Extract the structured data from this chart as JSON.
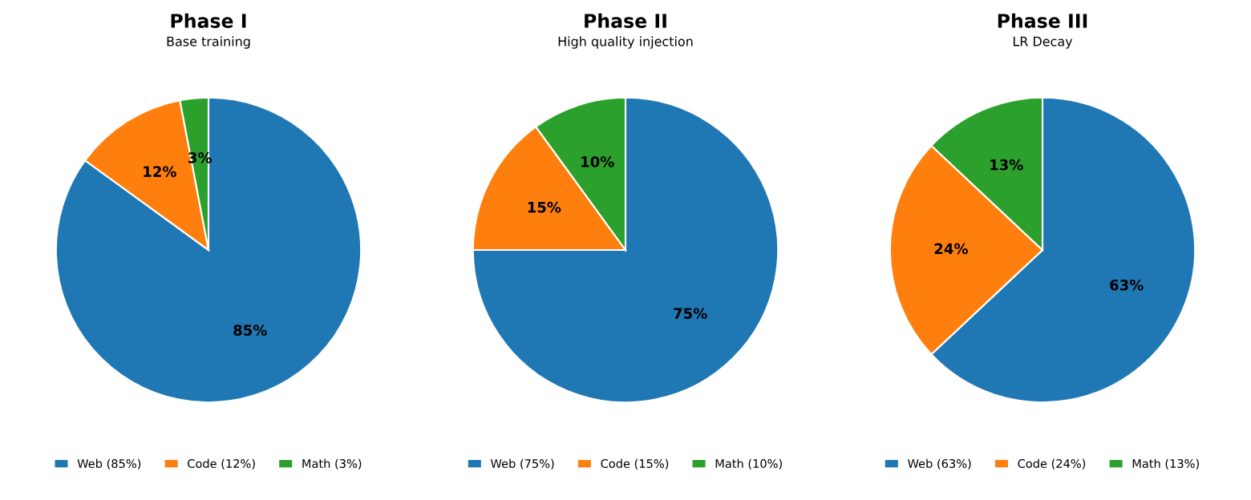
{
  "chart_data": [
    {
      "type": "pie",
      "title": "Phase I",
      "subtitle": "Base training",
      "categories": [
        "Web (85%)",
        "Code (12%)",
        "Math (3%)"
      ],
      "values": [
        85,
        12,
        3
      ],
      "colors": [
        "#1f77b4",
        "#ff7f0e",
        "#2ca02c"
      ],
      "value_labels": [
        "85%",
        "12%",
        "3%"
      ],
      "legend": "bottom"
    },
    {
      "type": "pie",
      "title": "Phase II",
      "subtitle": "High quality injection",
      "categories": [
        "Web (75%)",
        "Code (15%)",
        "Math (10%)"
      ],
      "values": [
        75,
        15,
        10
      ],
      "colors": [
        "#1f77b4",
        "#ff7f0e",
        "#2ca02c"
      ],
      "value_labels": [
        "75%",
        "15%",
        "10%"
      ],
      "legend": "bottom"
    },
    {
      "type": "pie",
      "title": "Phase III",
      "subtitle": "LR Decay",
      "categories": [
        "Web (63%)",
        "Code (24%)",
        "Math (13%)"
      ],
      "values": [
        63,
        24,
        13
      ],
      "colors": [
        "#1f77b4",
        "#ff7f0e",
        "#2ca02c"
      ],
      "value_labels": [
        "63%",
        "24%",
        "13%"
      ],
      "legend": "bottom"
    }
  ]
}
